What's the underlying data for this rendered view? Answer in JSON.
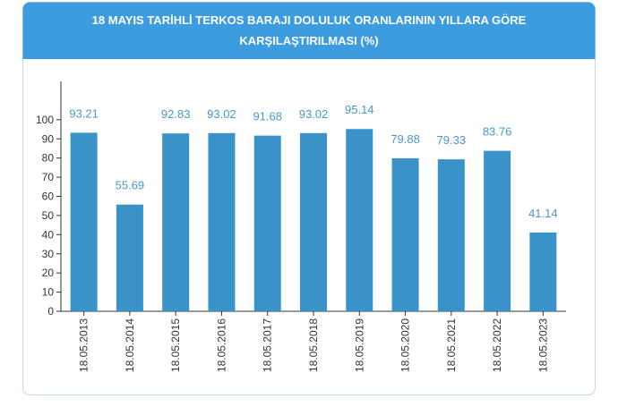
{
  "chart_data": {
    "type": "bar",
    "title": [
      "18 MAYIS TARİHLİ TERKOS BARAJI DOLULUK ORANLARININ YILLARA GÖRE",
      "KARŞILAŞTIRILMASI (%)"
    ],
    "categories": [
      "18.05.2013",
      "18.05.2014",
      "18.05.2015",
      "18.05.2016",
      "18.05.2017",
      "18.05.2018",
      "18.05.2019",
      "18.05.2020",
      "18.05.2021",
      "18.05.2022",
      "18.05.2023"
    ],
    "values": [
      93.21,
      55.69,
      92.83,
      93.02,
      91.68,
      93.02,
      95.14,
      79.88,
      79.33,
      83.76,
      41.14
    ],
    "color": "#3a93c8",
    "ylim": [
      0,
      120
    ],
    "yticks": [
      0,
      10,
      20,
      30,
      40,
      50,
      60,
      70,
      80,
      90,
      100
    ]
  }
}
